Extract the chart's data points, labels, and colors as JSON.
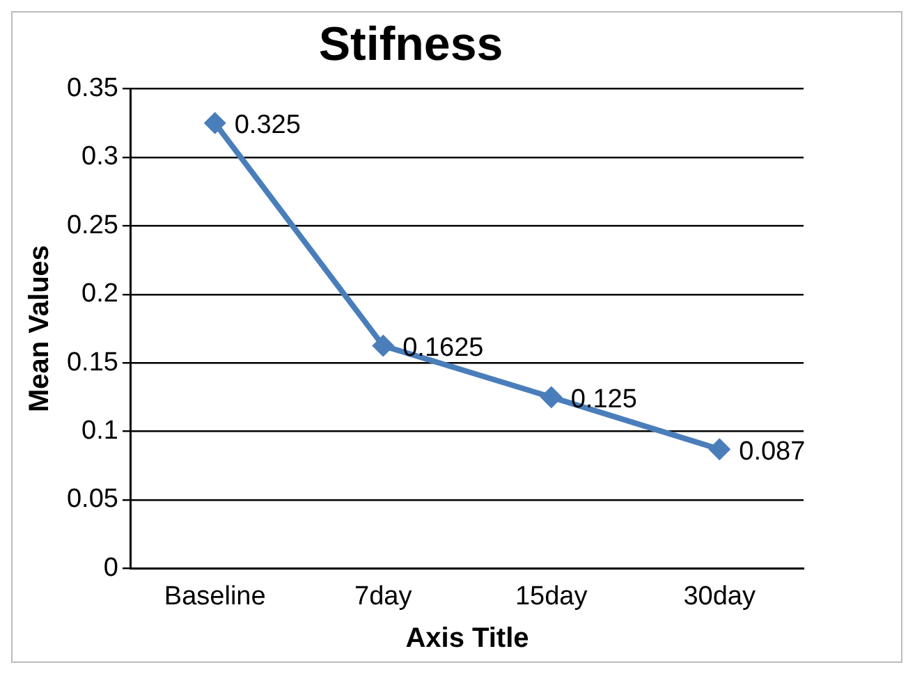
{
  "chart_data": {
    "type": "line",
    "title": "Stifness",
    "xlabel": "Axis Title",
    "ylabel": "Mean Values",
    "categories": [
      "Baseline",
      "7day",
      "15day",
      "30day"
    ],
    "series": [
      {
        "color": "#4a7ebb",
        "values": [
          0.325,
          0.1625,
          0.125,
          0.087
        ]
      }
    ],
    "ylim": [
      0,
      0.35
    ],
    "yticks": [
      0,
      0.05,
      0.1,
      0.15,
      0.2,
      0.25,
      0.3,
      0.35
    ],
    "grid": "y",
    "legend": false,
    "marker": "diamond",
    "line_style": "solid",
    "data_labels": true
  }
}
